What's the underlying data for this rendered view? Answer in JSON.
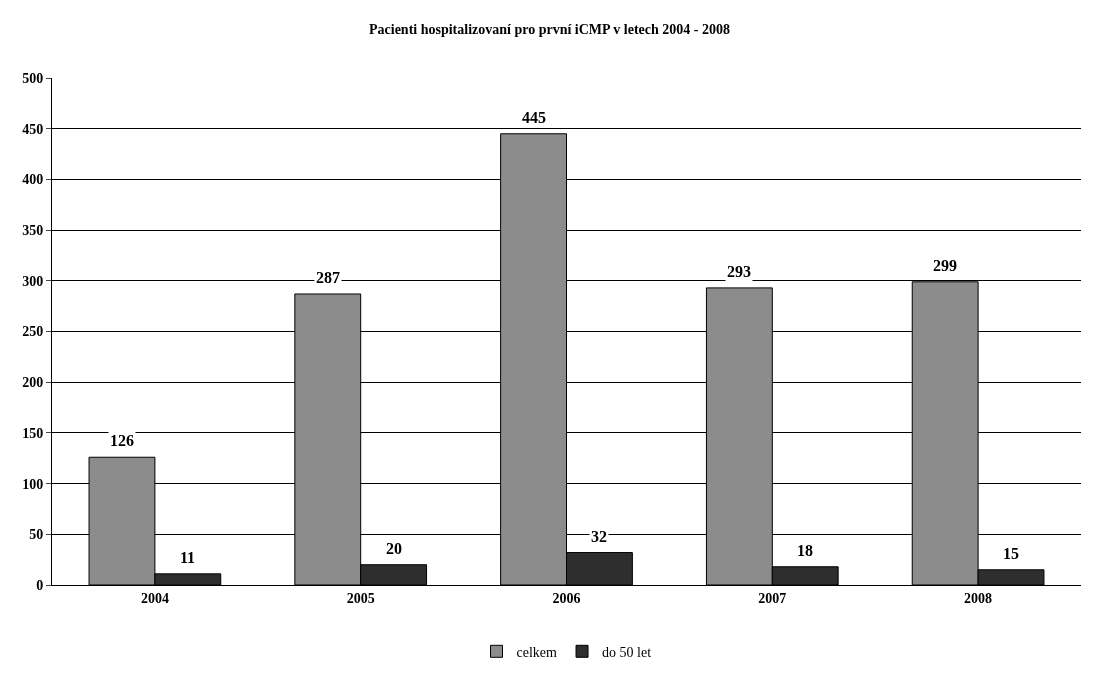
{
  "chart_data": {
    "type": "bar",
    "title": "Pacienti hospitalizovaní pro první iCMP v letech 2004 - 2008",
    "categories": [
      "2004",
      "2005",
      "2006",
      "2007",
      "2008"
    ],
    "series": [
      {
        "name": "celkem",
        "color": "#8c8c8c",
        "values": [
          126,
          287,
          445,
          293,
          299
        ]
      },
      {
        "name": "do 50 let",
        "color": "#2e2e2e",
        "values": [
          11,
          20,
          32,
          18,
          15
        ]
      }
    ],
    "ylim": [
      0,
      500
    ],
    "yticks": [
      0,
      50,
      100,
      150,
      200,
      250,
      300,
      350,
      400,
      450,
      500
    ],
    "grid": "y",
    "legend": "bottom",
    "data_labels": true
  }
}
